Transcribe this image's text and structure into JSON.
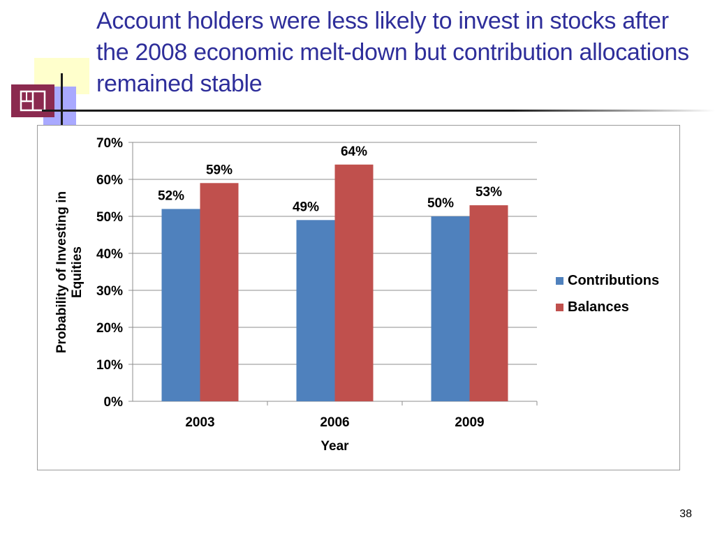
{
  "slide": {
    "title": "Account holders were less likely to invest in stocks after the 2008 economic melt-down but contribution allocations remained stable",
    "page_number": "38"
  },
  "chart_data": {
    "type": "bar",
    "categories": [
      "2003",
      "2006",
      "2009"
    ],
    "series": [
      {
        "name": "Contributions",
        "values": [
          52,
          49,
          50
        ],
        "labels": [
          "52%",
          "49%",
          "50%"
        ],
        "color": "#4f81bd"
      },
      {
        "name": "Balances",
        "values": [
          59,
          64,
          53
        ],
        "labels": [
          "59%",
          "64%",
          "53%"
        ],
        "color": "#c0504d"
      }
    ],
    "title": "",
    "xlabel": "Year",
    "ylabel": "Probability of Investing in Equities",
    "ylim": [
      0,
      70
    ],
    "yticks": [
      "0%",
      "10%",
      "20%",
      "30%",
      "40%",
      "50%",
      "60%",
      "70%"
    ],
    "grid": true,
    "legend": "right"
  },
  "colors": {
    "title": "#2e2e9a",
    "gridline": "#8c8c8c",
    "logo_maroon": "#8b2a4f",
    "deco_yellow": "#ffffcc",
    "deco_lavender": "#a9a9ff"
  }
}
